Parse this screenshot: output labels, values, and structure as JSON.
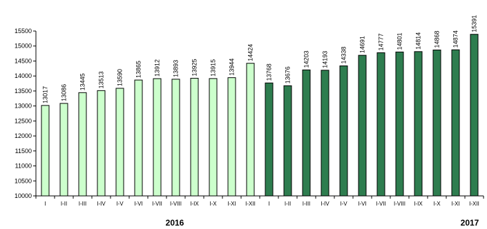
{
  "chart_data": {
    "type": "bar",
    "title": "",
    "xlabel": "",
    "ylabel": "",
    "ylim": [
      10000,
      15500
    ],
    "yticks": [
      10000,
      10500,
      11000,
      11500,
      12000,
      12500,
      13000,
      13500,
      14000,
      14500,
      15000,
      15500
    ],
    "grid": false,
    "categories": [
      "I",
      "I-II",
      "I-III",
      "I-IV",
      "I-V",
      "I-VI",
      "I-VII",
      "I-VIII",
      "I-IX",
      "I-X",
      "I-XI",
      "I-XII",
      "I",
      "I-II",
      "I-III",
      "I-IV",
      "I-V",
      "I-VI",
      "I-VII",
      "I-VIII",
      "I-IX",
      "I-X",
      "I-XI",
      "I-XII"
    ],
    "series": [
      {
        "values": [
          13017,
          13086,
          13445,
          13513,
          13590,
          13865,
          13912,
          13893,
          13925,
          13915,
          13944,
          14424,
          null,
          null,
          null,
          null,
          null,
          null,
          null,
          null,
          null,
          null,
          null,
          null
        ],
        "color": "#ccffcc"
      },
      {
        "values": [
          null,
          null,
          null,
          null,
          null,
          null,
          null,
          null,
          null,
          null,
          null,
          null,
          13768,
          13676,
          14203,
          14193,
          14338,
          14691,
          14777,
          14801,
          14814,
          14868,
          14874,
          15391
        ],
        "color": "#2e7d4f"
      }
    ],
    "groups": [
      {
        "label": "2016",
        "start": 0,
        "end": 11
      },
      {
        "label": "2017",
        "start": 12,
        "end": 23
      }
    ]
  }
}
